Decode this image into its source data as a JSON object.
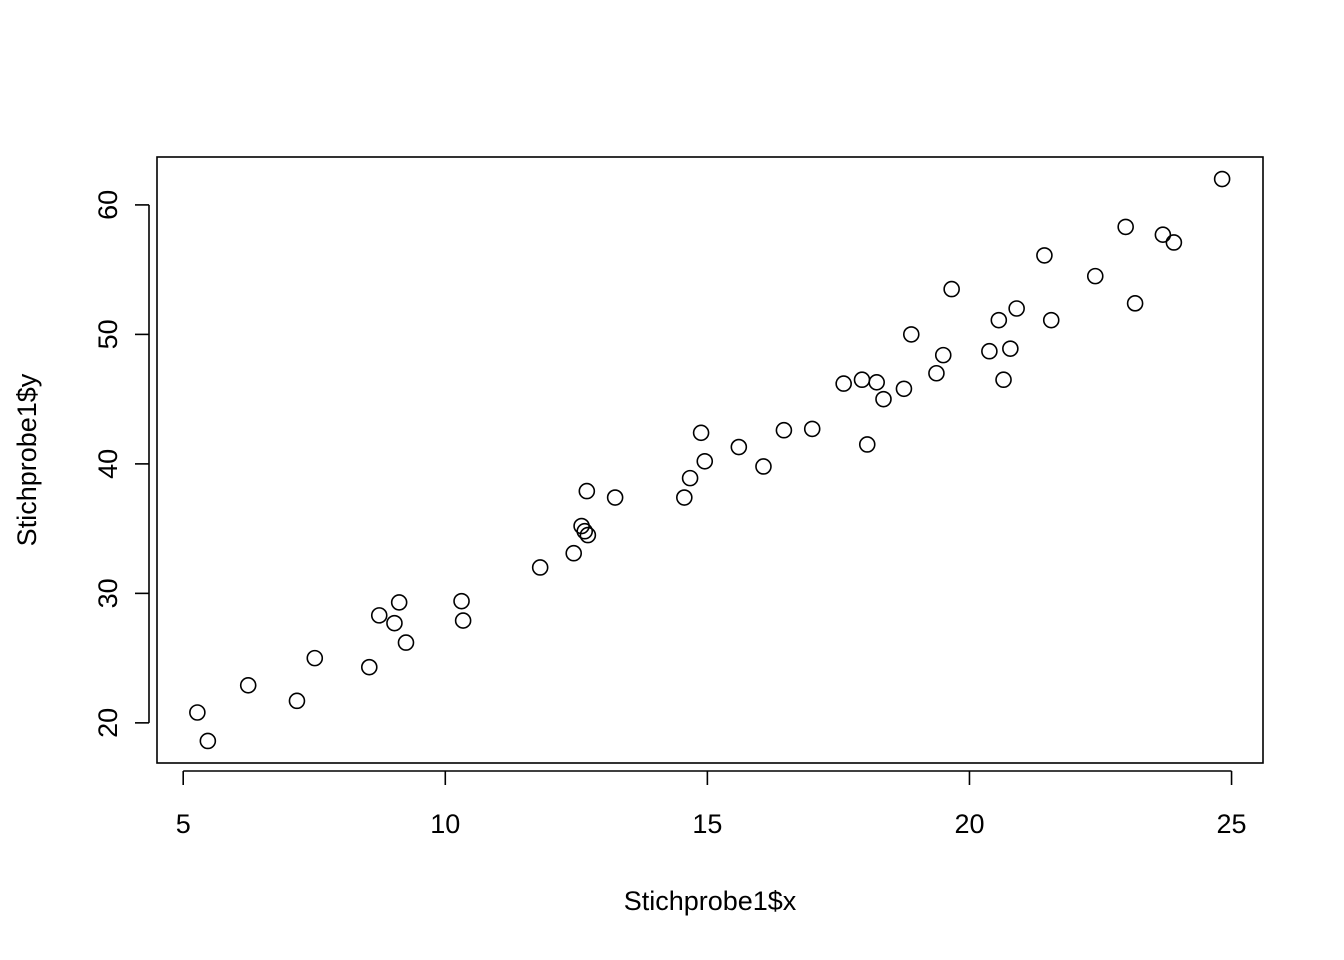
{
  "chart_data": {
    "type": "scatter",
    "title": "",
    "xlabel": "Stichprobe1$x",
    "ylabel": "Stichprobe1$y",
    "xlim": [
      4.5,
      25.6
    ],
    "ylim": [
      16.9,
      63.7
    ],
    "xticks": [
      5,
      10,
      15,
      20,
      25
    ],
    "xtick_labels": [
      "5",
      "10",
      "15",
      "20",
      "25"
    ],
    "yticks": [
      20,
      30,
      40,
      50,
      60
    ],
    "ytick_labels": [
      "20",
      "30",
      "40",
      "50",
      "60"
    ],
    "grid": false,
    "marker": "open-circle",
    "colors": {
      "points": "#000000",
      "axes": "#000000",
      "background": "#ffffff"
    },
    "series": [
      {
        "points": [
          [
            5.27,
            20.8
          ],
          [
            5.47,
            18.6
          ],
          [
            6.24,
            22.9
          ],
          [
            7.17,
            21.7
          ],
          [
            7.51,
            25.0
          ],
          [
            8.55,
            24.3
          ],
          [
            8.74,
            28.3
          ],
          [
            9.03,
            27.7
          ],
          [
            9.12,
            29.3
          ],
          [
            9.25,
            26.2
          ],
          [
            10.31,
            29.4
          ],
          [
            10.34,
            27.9
          ],
          [
            11.81,
            32.0
          ],
          [
            12.45,
            33.1
          ],
          [
            12.6,
            35.2
          ],
          [
            12.66,
            34.8
          ],
          [
            12.72,
            34.5
          ],
          [
            12.7,
            37.9
          ],
          [
            13.24,
            37.4
          ],
          [
            14.56,
            37.4
          ],
          [
            14.67,
            38.9
          ],
          [
            14.88,
            42.4
          ],
          [
            14.95,
            40.2
          ],
          [
            15.6,
            41.3
          ],
          [
            16.07,
            39.8
          ],
          [
            16.46,
            42.6
          ],
          [
            17.0,
            42.7
          ],
          [
            17.6,
            46.2
          ],
          [
            17.95,
            46.5
          ],
          [
            18.05,
            41.5
          ],
          [
            18.23,
            46.3
          ],
          [
            18.36,
            45.0
          ],
          [
            18.75,
            45.8
          ],
          [
            18.89,
            50.0
          ],
          [
            19.37,
            47.0
          ],
          [
            19.5,
            48.4
          ],
          [
            19.66,
            53.5
          ],
          [
            20.38,
            48.7
          ],
          [
            20.56,
            51.1
          ],
          [
            20.65,
            46.5
          ],
          [
            20.78,
            48.9
          ],
          [
            20.9,
            52.0
          ],
          [
            21.43,
            56.1
          ],
          [
            21.56,
            51.1
          ],
          [
            22.4,
            54.5
          ],
          [
            22.98,
            58.3
          ],
          [
            23.16,
            52.4
          ],
          [
            23.69,
            57.7
          ],
          [
            23.9,
            57.1
          ],
          [
            24.82,
            62.0
          ]
        ]
      }
    ]
  }
}
